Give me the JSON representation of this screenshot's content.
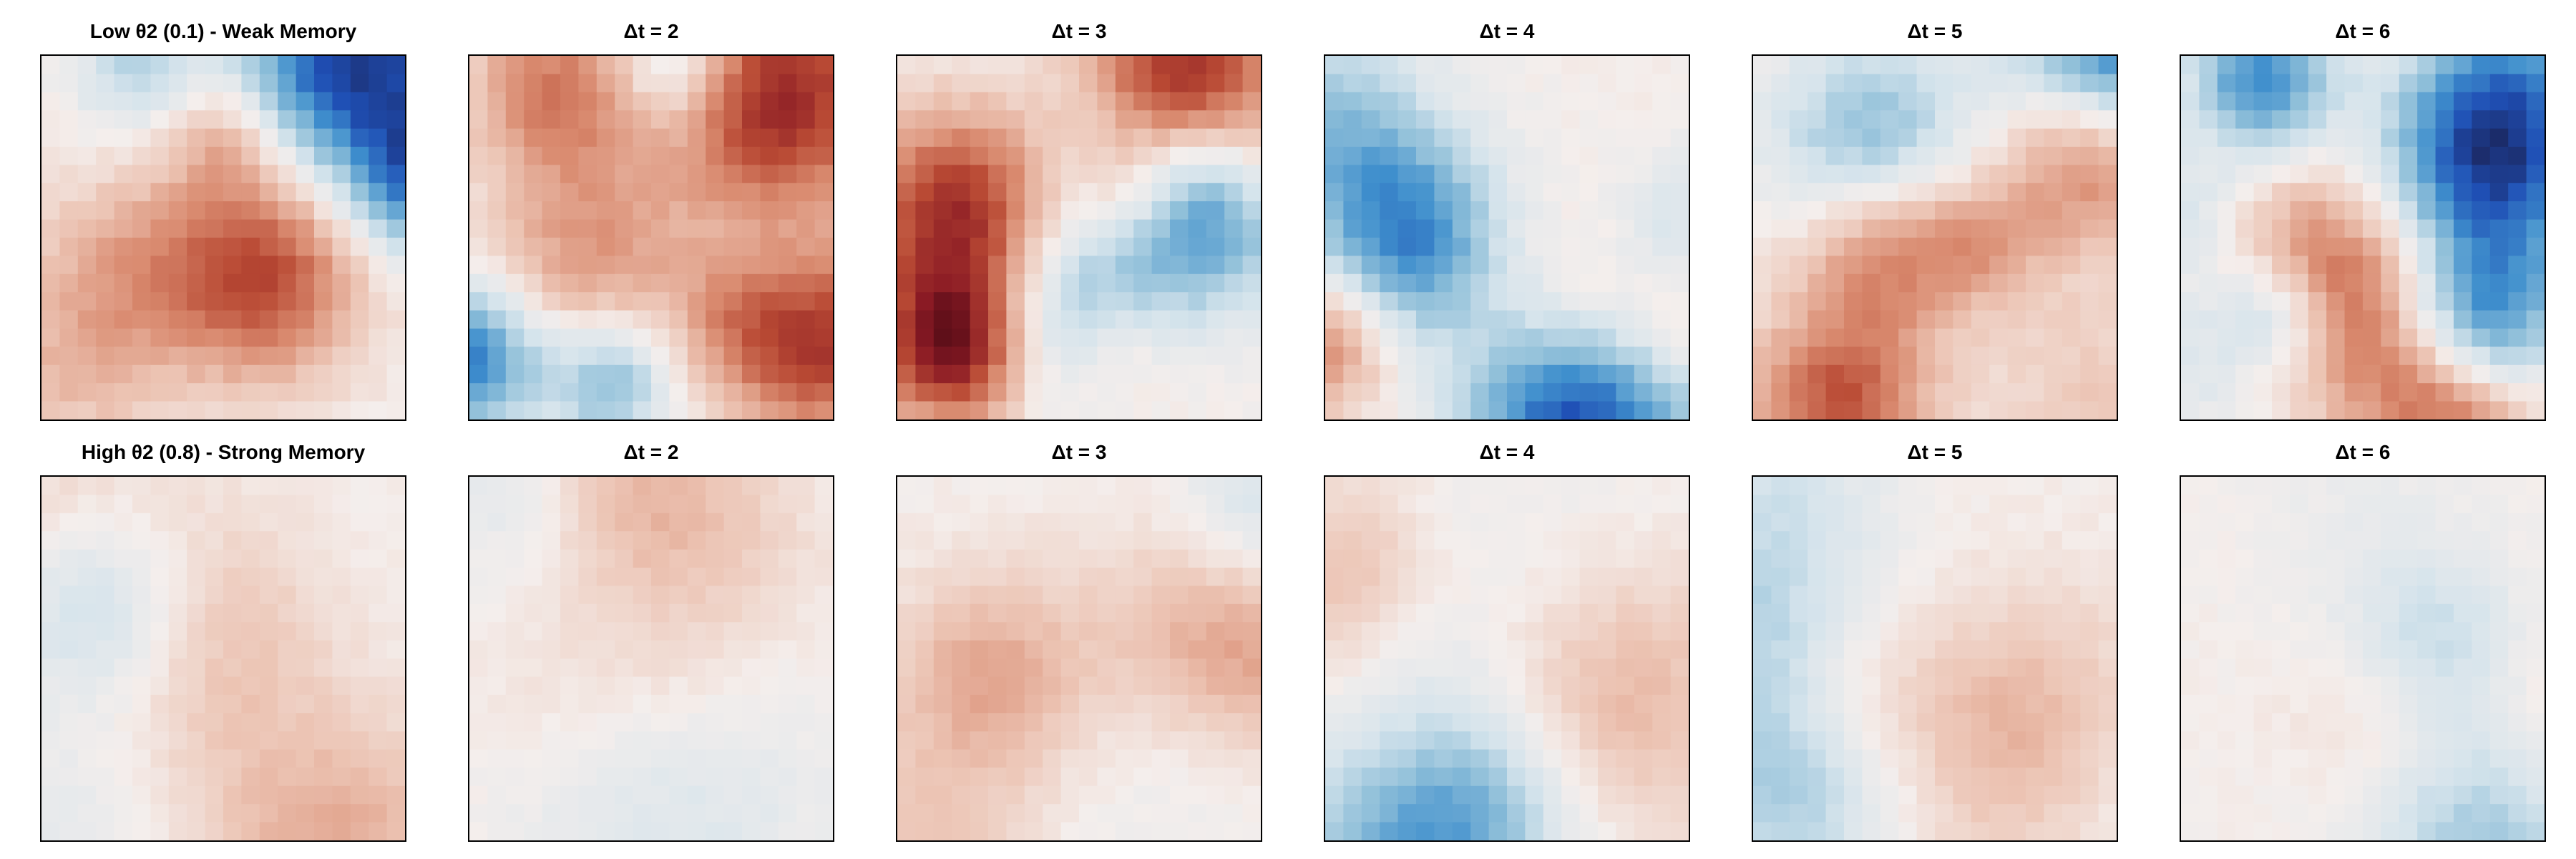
{
  "chart_data": [
    {
      "type": "heatmap",
      "title": "Low θ2 (0.1) - Weak Memory",
      "grid": "20x20",
      "colormap": "RdBu_r",
      "pattern": "weak-memory"
    },
    {
      "type": "heatmap",
      "title": "Δt = 2",
      "grid": "20x20",
      "colormap": "RdBu_r",
      "pattern": "weak-memory"
    },
    {
      "type": "heatmap",
      "title": "Δt = 3",
      "grid": "20x20",
      "colormap": "RdBu_r",
      "pattern": "weak-memory"
    },
    {
      "type": "heatmap",
      "title": "Δt = 4",
      "grid": "20x20",
      "colormap": "RdBu_r",
      "pattern": "weak-memory"
    },
    {
      "type": "heatmap",
      "title": "Δt = 5",
      "grid": "20x20",
      "colormap": "RdBu_r",
      "pattern": "weak-memory"
    },
    {
      "type": "heatmap",
      "title": "Δt = 6",
      "grid": "20x20",
      "colormap": "RdBu_r",
      "pattern": "weak-memory"
    },
    {
      "type": "heatmap",
      "title": "High θ2 (0.8) - Strong Memory",
      "grid": "20x20",
      "colormap": "RdBu_r",
      "pattern": "strong-memory"
    },
    {
      "type": "heatmap",
      "title": "Δt = 2",
      "grid": "20x20",
      "colormap": "RdBu_r",
      "pattern": "strong-memory"
    },
    {
      "type": "heatmap",
      "title": "Δt = 3",
      "grid": "20x20",
      "colormap": "RdBu_r",
      "pattern": "strong-memory"
    },
    {
      "type": "heatmap",
      "title": "Δt = 4",
      "grid": "20x20",
      "colormap": "RdBu_r",
      "pattern": "strong-memory"
    },
    {
      "type": "heatmap",
      "title": "Δt = 5",
      "grid": "20x20",
      "colormap": "RdBu_r",
      "pattern": "strong-memory"
    },
    {
      "type": "heatmap",
      "title": "Δt = 6",
      "grid": "20x20",
      "colormap": "RdBu_r",
      "pattern": "strong-memory"
    }
  ],
  "colors": {
    "frame": "#000000",
    "background": "#ffffff",
    "colormap_stops": [
      "#1a1e4d",
      "#1f4fb5",
      "#3f8fcd",
      "#8fbfd9",
      "#d6e4ec",
      "#f4eeec",
      "#ecc4b4",
      "#d98a6f",
      "#b94a34",
      "#8a1a24",
      "#3a0510"
    ]
  }
}
